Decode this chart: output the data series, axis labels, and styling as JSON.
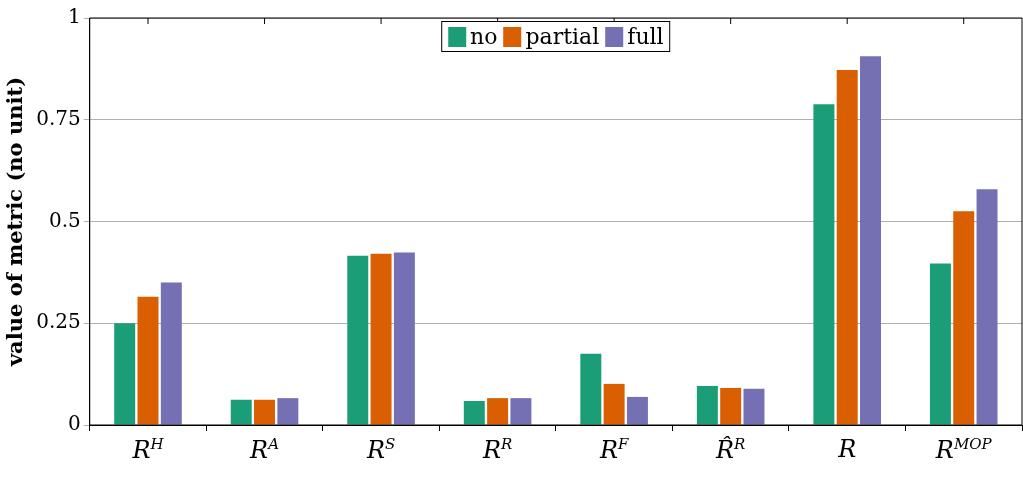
{
  "chart_data": {
    "type": "bar",
    "ylabel": "value of metric (no unit)",
    "categories": [
      "R$^{H}$",
      "R$^{A}$",
      "R$^{S}$",
      "R$^{R}$",
      "R$^{F}$",
      "R̂$^{R}$",
      "R",
      "R$^{MOP}$"
    ],
    "series": [
      {
        "name": "no",
        "color": "#1b9e77",
        "values": [
          0.25,
          0.062,
          0.416,
          0.059,
          0.175,
          0.096,
          0.788,
          0.397
        ]
      },
      {
        "name": "partial",
        "color": "#d95f02",
        "values": [
          0.315,
          0.062,
          0.421,
          0.066,
          0.101,
          0.091,
          0.872,
          0.525
        ]
      },
      {
        "name": "full",
        "color": "#7570b3",
        "values": [
          0.35,
          0.066,
          0.424,
          0.066,
          0.069,
          0.089,
          0.906,
          0.579
        ]
      }
    ],
    "ylim": [
      0,
      1
    ],
    "yticks": [
      0,
      {
        "value": 0.25,
        "label": "0.25"
      },
      {
        "value": 0.5,
        "label": "0.5"
      },
      {
        "value": 0.75,
        "label": "0.75"
      },
      1
    ],
    "grid": "y",
    "legend": "top"
  }
}
